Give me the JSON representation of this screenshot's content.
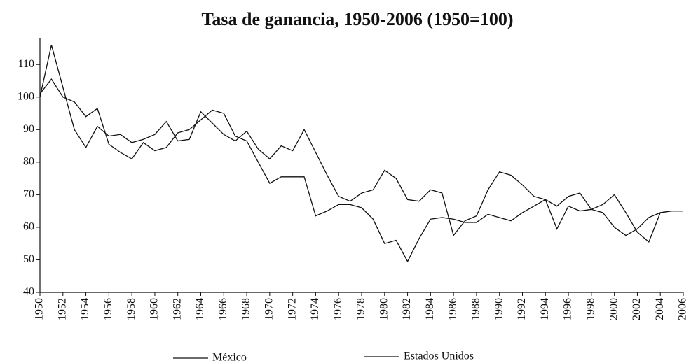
{
  "chart_data": {
    "type": "line",
    "title": "Tasa de ganancia, 1950-2006 (1950=100)",
    "x": [
      1950,
      1951,
      1952,
      1953,
      1954,
      1955,
      1956,
      1957,
      1958,
      1959,
      1960,
      1961,
      1962,
      1963,
      1964,
      1965,
      1966,
      1967,
      1968,
      1969,
      1970,
      1971,
      1972,
      1973,
      1974,
      1975,
      1976,
      1977,
      1978,
      1979,
      1980,
      1981,
      1982,
      1983,
      1984,
      1985,
      1986,
      1987,
      1988,
      1989,
      1990,
      1991,
      1992,
      1993,
      1994,
      1995,
      1996,
      1997,
      1998,
      1999,
      2000,
      2001,
      2002,
      2003,
      2004,
      2005,
      2006
    ],
    "series": [
      {
        "name": "México",
        "color": "#111111",
        "values": [
          100,
          116,
          103,
          90,
          84.5,
          91,
          88,
          88.5,
          86,
          87,
          88.5,
          92.5,
          86.5,
          87,
          95.5,
          92,
          88.5,
          86.5,
          89.5,
          84,
          81,
          85,
          83.5,
          90,
          83,
          76,
          69.5,
          68,
          70.5,
          71.5,
          77.5,
          75,
          68.5,
          68,
          71.5,
          70.5,
          57.5,
          62,
          63.5,
          71.5,
          77,
          76,
          73,
          69.5,
          68.5,
          66.5,
          69.5,
          70.5,
          65.5,
          64.5,
          60,
          57.5,
          59.5,
          63,
          64.5,
          65,
          65
        ]
      },
      {
        "name": "Estados Unidos",
        "color": "#111111",
        "values": [
          101,
          105.5,
          100,
          98.5,
          94,
          96.5,
          85.5,
          83,
          81,
          86,
          83.5,
          84.5,
          89,
          90,
          93,
          96,
          95,
          88,
          86.5,
          80,
          73.5,
          75.5,
          75.5,
          75.5,
          63.5,
          65,
          67,
          67,
          66,
          62.5,
          55,
          56,
          49.5,
          56.5,
          62.5,
          63,
          62.5,
          61.5,
          61.5,
          64,
          63,
          62,
          64.5,
          66.5,
          68.5,
          59.5,
          66.5,
          65,
          65.5,
          67,
          70,
          64.5,
          58.5,
          55.5,
          64.5,
          65,
          65
        ]
      }
    ],
    "xlim": [
      1950,
      2006
    ],
    "xticks": [
      1950,
      1952,
      1954,
      1956,
      1958,
      1960,
      1962,
      1964,
      1966,
      1968,
      1970,
      1972,
      1974,
      1976,
      1978,
      1980,
      1982,
      1984,
      1986,
      1988,
      1990,
      1992,
      1994,
      1996,
      1998,
      2000,
      2002,
      2004,
      2006
    ],
    "ylim": [
      40,
      118
    ],
    "yticks": [
      40,
      50,
      60,
      70,
      80,
      90,
      100,
      110
    ],
    "grid": false
  }
}
